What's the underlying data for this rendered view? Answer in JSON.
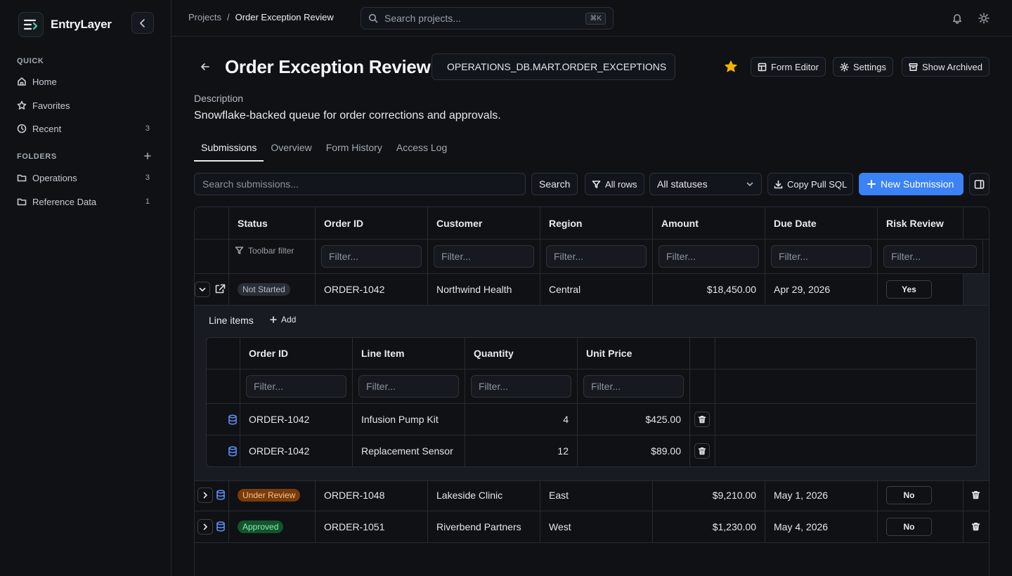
{
  "app": {
    "name": "EntryLayer"
  },
  "sidebar": {
    "quick_label": "QUICK",
    "folders_label": "FOLDERS",
    "quick": [
      {
        "label": "Home",
        "icon": "home-icon",
        "count": ""
      },
      {
        "label": "Favorites",
        "icon": "star-icon",
        "count": ""
      },
      {
        "label": "Recent",
        "icon": "clock-icon",
        "count": "3"
      }
    ],
    "folders": [
      {
        "label": "Operations",
        "icon": "folder-icon",
        "count": "3"
      },
      {
        "label": "Reference Data",
        "icon": "folder-icon",
        "count": "1"
      }
    ]
  },
  "topbar": {
    "breadcrumb_root": "Projects",
    "breadcrumb_sep": "/",
    "breadcrumb_current": "Order Exception Review",
    "search_placeholder": "Search projects...",
    "shortcut": "⌘K"
  },
  "header": {
    "title": "Order Exception Review",
    "table_ref": "OPERATIONS_DB.MART.ORDER_EXCEPTIONS",
    "favorite_color": "#f5b301",
    "form_editor": "Form Editor",
    "settings": "Settings",
    "show_archived": "Show Archived",
    "description_label": "Description",
    "description": "Snowflake-backed queue for order corrections and approvals."
  },
  "tabs": [
    "Submissions",
    "Overview",
    "Form History",
    "Access Log"
  ],
  "active_tab": "Submissions",
  "toolbar": {
    "search_placeholder": "Search submissions...",
    "search_button": "Search",
    "rows_filter": "All rows",
    "status_select": "All statuses",
    "copy_sql": "Copy Pull SQL",
    "new_submission": "New Submission"
  },
  "grid": {
    "columns": [
      "Status",
      "Order ID",
      "Customer",
      "Region",
      "Amount",
      "Due Date",
      "Risk Review"
    ],
    "toolbar_filter_label": "Toolbar filter",
    "filter_placeholder": "Filter...",
    "rows": [
      {
        "status": "Not Started",
        "order_id": "ORDER-1042",
        "customer": "Northwind Health",
        "region": "Central",
        "amount": "$18,450.00",
        "due": "Apr 29, 2026",
        "risk": "Yes",
        "expanded": true
      },
      {
        "status": "Under Review",
        "order_id": "ORDER-1048",
        "customer": "Lakeside Clinic",
        "region": "East",
        "amount": "$9,210.00",
        "due": "May 1, 2026",
        "risk": "No",
        "expanded": false
      },
      {
        "status": "Approved",
        "order_id": "ORDER-1051",
        "customer": "Riverbend Partners",
        "region": "West",
        "amount": "$1,230.00",
        "due": "May 4, 2026",
        "risk": "No",
        "expanded": false
      }
    ]
  },
  "line_items": {
    "title": "Line items",
    "add_label": "Add",
    "columns": [
      "Order ID",
      "Line Item",
      "Quantity",
      "Unit Price"
    ],
    "filter_placeholder": "Filter...",
    "rows": [
      {
        "order_id": "ORDER-1042",
        "item": "Infusion Pump Kit",
        "qty": "4",
        "price": "$425.00"
      },
      {
        "order_id": "ORDER-1042",
        "item": "Replacement Sensor",
        "qty": "12",
        "price": "$89.00"
      }
    ]
  },
  "colors": {
    "primary": "#3b82f6",
    "db_icon": "#5b8ef0",
    "brand_accent": "#4fd1b5"
  }
}
